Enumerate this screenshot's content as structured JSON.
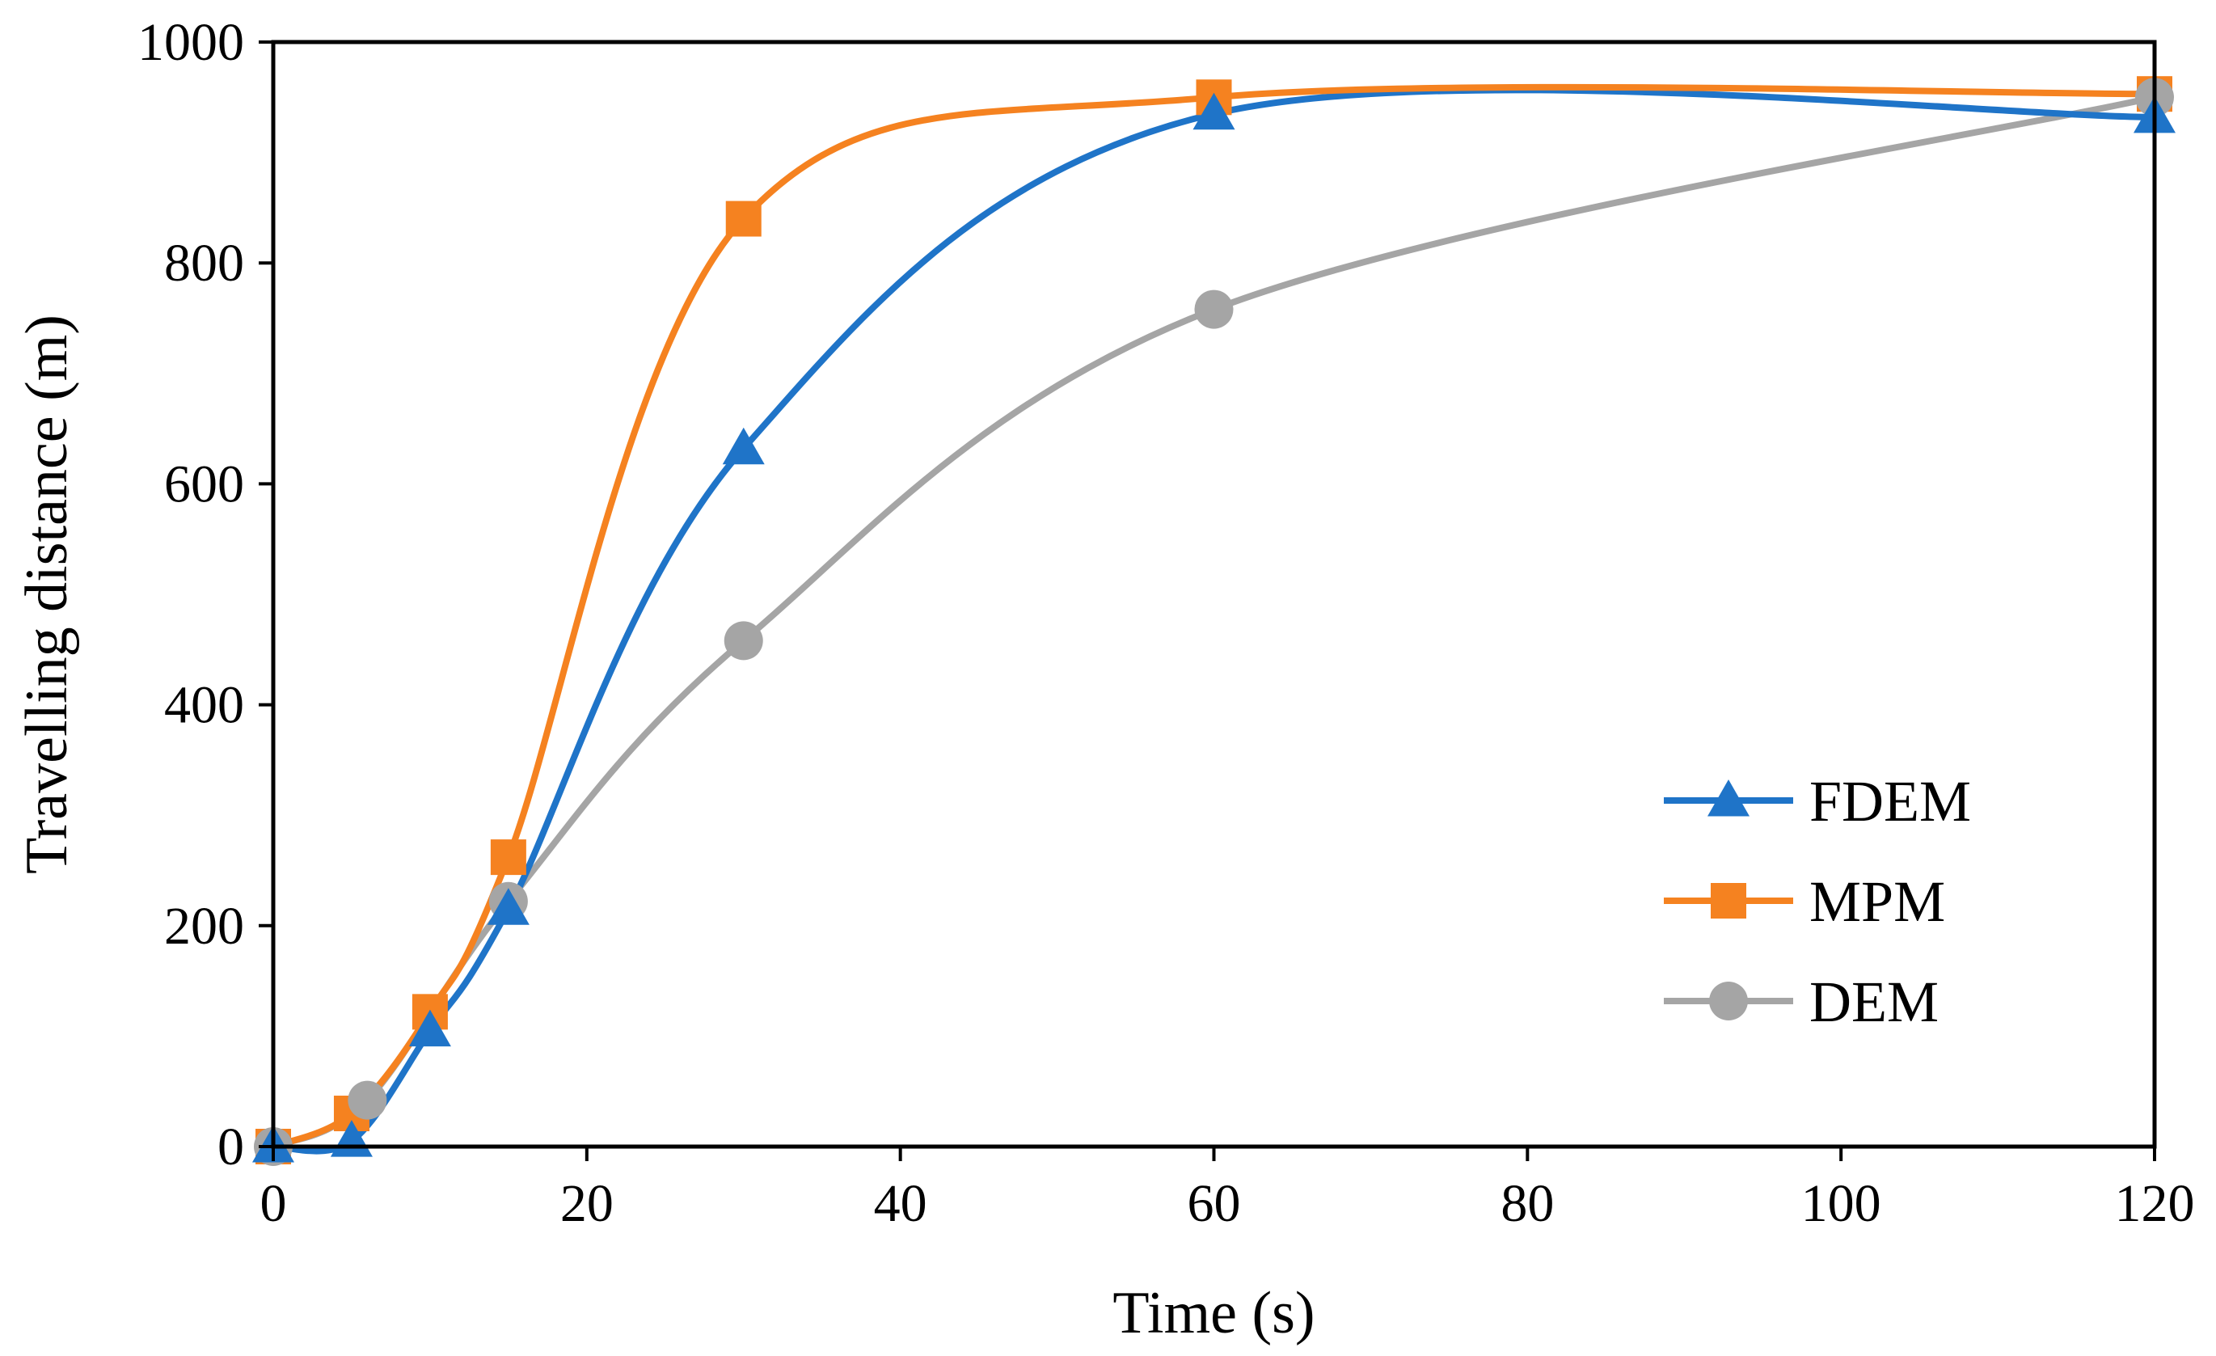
{
  "chart_data": {
    "type": "line",
    "title": "",
    "xlabel": "Time (s)",
    "ylabel": "Travelling distance (m)",
    "xlim": [
      0,
      120
    ],
    "ylim": [
      0,
      1000
    ],
    "xticks": [
      0,
      20,
      40,
      60,
      80,
      100,
      120
    ],
    "yticks": [
      0,
      200,
      400,
      600,
      800,
      1000
    ],
    "legend_position": "lower-right",
    "grid": false,
    "series": [
      {
        "name": "FDEM",
        "color": "#1f74c8",
        "marker": "triangle",
        "x": [
          0,
          5,
          10,
          15,
          30,
          60,
          120
        ],
        "y": [
          0,
          5,
          105,
          215,
          632,
          935,
          932
        ]
      },
      {
        "name": "MPM",
        "color": "#f58220",
        "marker": "square",
        "x": [
          0,
          5,
          10,
          15,
          30,
          60,
          120
        ],
        "y": [
          0,
          30,
          122,
          262,
          840,
          950,
          953
        ]
      },
      {
        "name": "DEM",
        "color": "#a5a5a5",
        "marker": "circle",
        "x": [
          0,
          6,
          15,
          30,
          60,
          120
        ],
        "y": [
          0,
          42,
          222,
          458,
          758,
          950
        ]
      }
    ]
  }
}
